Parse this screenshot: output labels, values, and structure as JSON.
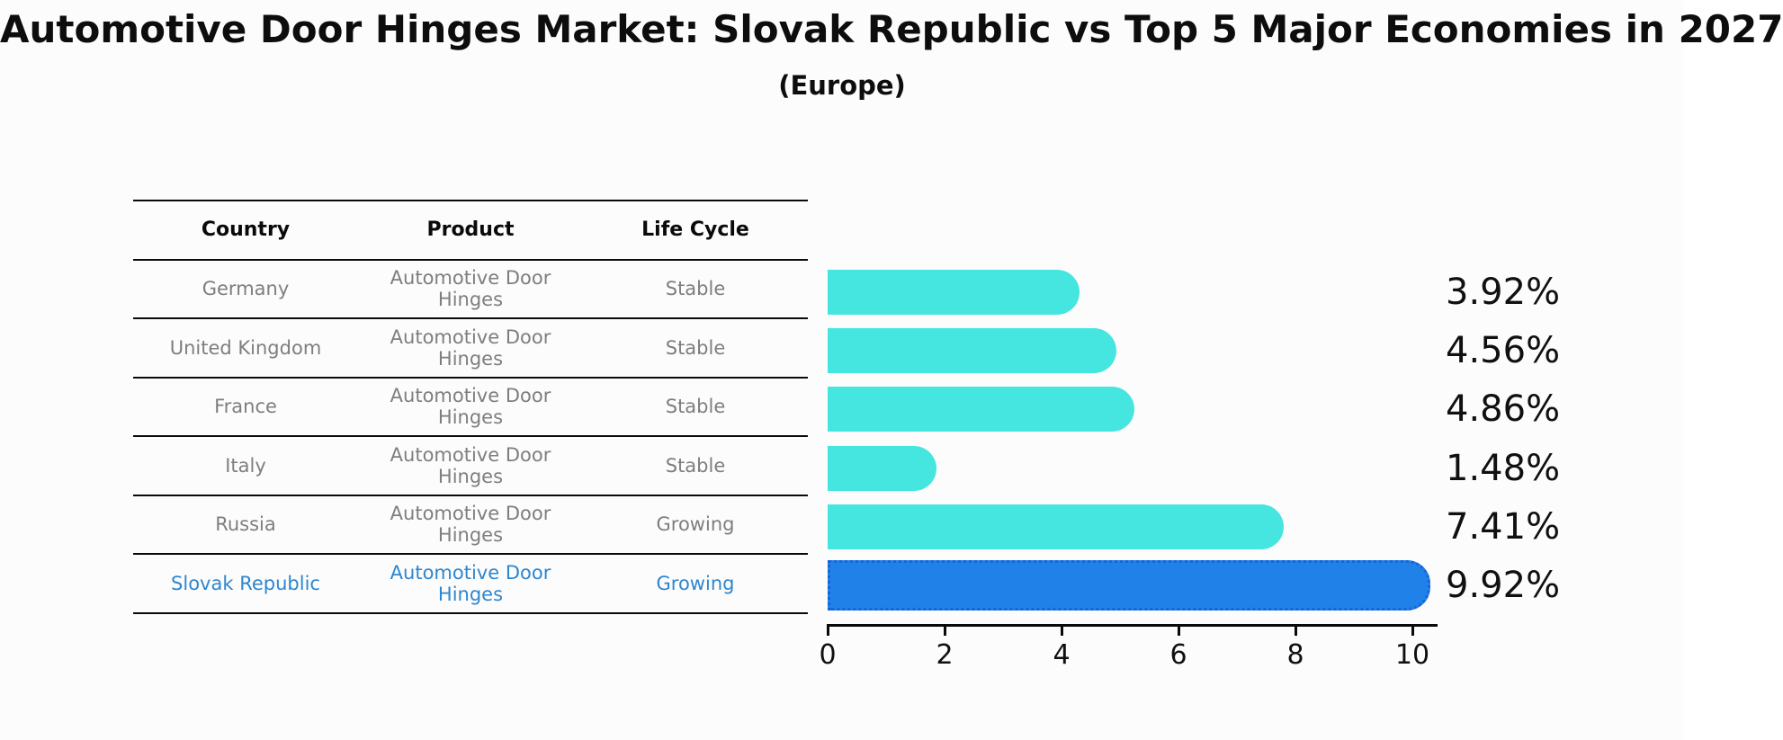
{
  "header": {
    "title": "Automotive Door Hinges Market: Slovak Republic vs Top 5 Major Economies in 2027",
    "subtitle": "(Europe)"
  },
  "table": {
    "headers": [
      "Country",
      "Product",
      "Life Cycle"
    ],
    "rows": [
      {
        "country": "Germany",
        "product": "Automotive Door Hinges",
        "life_cycle": "Stable",
        "highlighted": false
      },
      {
        "country": "United Kingdom",
        "product": "Automotive Door Hinges",
        "life_cycle": "Stable",
        "highlighted": false
      },
      {
        "country": "France",
        "product": "Automotive Door Hinges",
        "life_cycle": "Stable",
        "highlighted": false
      },
      {
        "country": "Italy",
        "product": "Automotive Door Hinges",
        "life_cycle": "Stable",
        "highlighted": false
      },
      {
        "country": "Russia",
        "product": "Automotive Door Hinges",
        "life_cycle": "Growing",
        "highlighted": false
      },
      {
        "country": "Slovak Republic",
        "product": "Automotive Door Hinges",
        "life_cycle": "Growing",
        "highlighted": true
      }
    ]
  },
  "chart_data": {
    "type": "bar",
    "orientation": "horizontal",
    "title": "Automotive Door Hinges Market: Slovak Republic vs Top 5 Major Economies in 2027",
    "subtitle": "(Europe)",
    "categories": [
      "Germany",
      "United Kingdom",
      "France",
      "Italy",
      "Russia",
      "Slovak Republic"
    ],
    "values": [
      3.92,
      4.56,
      4.86,
      1.48,
      7.41,
      9.92
    ],
    "value_labels": [
      "3.92%",
      "4.56%",
      "4.86%",
      "1.48%",
      "7.41%",
      "9.92%"
    ],
    "highlight_index": 5,
    "x_ticks": [
      0,
      2,
      4,
      6,
      8,
      10
    ],
    "xlim": [
      0,
      10.45
    ],
    "grid": false,
    "legend": false,
    "colors": {
      "bar": "#45e5e0",
      "highlight_bar": "#2081e8",
      "highlight_border": "#1565d8",
      "highlight_text": "#2e86cf",
      "row_text": "#7e7e7e",
      "axis_text": "#101010",
      "background": "#fcfcfc"
    }
  }
}
